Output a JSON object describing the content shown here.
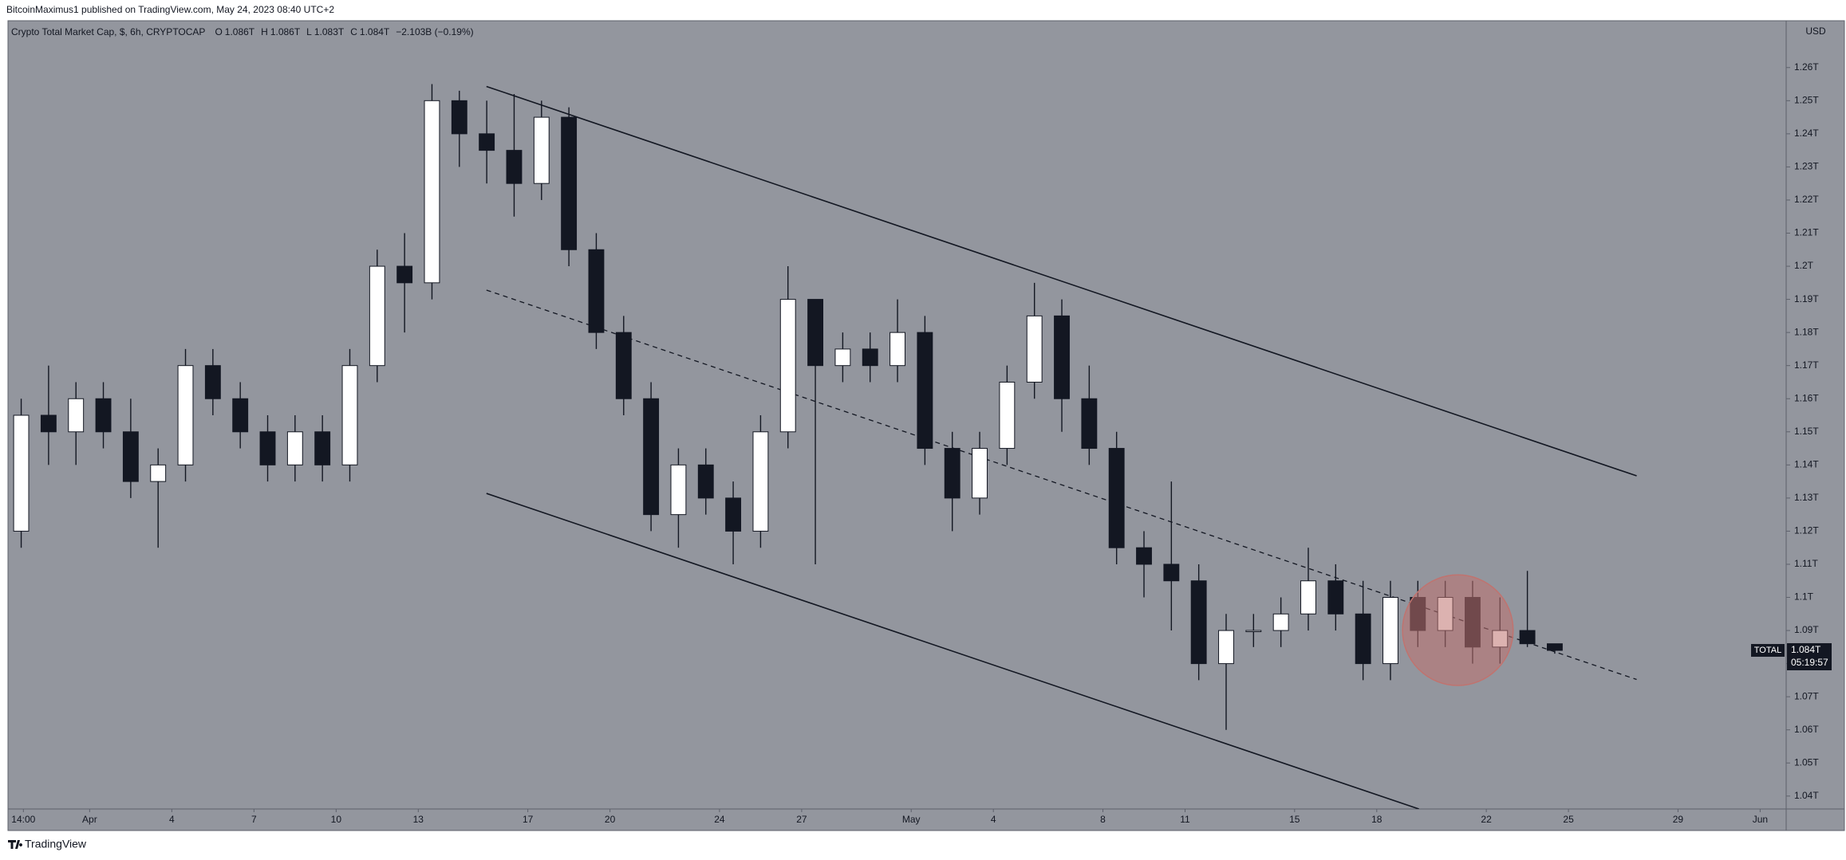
{
  "chart_data": {
    "type": "candlestick",
    "publisher": "BitcoinMaximus1 published on TradingView.com, May 24, 2023 08:40 UTC+2",
    "title": "Crypto Total Market Cap, $, 6h, CRYPTOCAP",
    "legend_values": [
      {
        "label": "O",
        "value": "1.086T"
      },
      {
        "label": "H",
        "value": "1.086T"
      },
      {
        "label": "L",
        "value": "1.083T"
      },
      {
        "label": "C",
        "value": "1.084T"
      }
    ],
    "change": "−2.103B (−0.19%)",
    "y_unit_label": "USD",
    "x": [
      -2.5,
      -1.5,
      -0.5,
      0.5,
      1.5,
      2.5,
      3.5,
      4.5,
      5.5,
      6.5,
      7.5,
      8.5,
      9.5,
      10.5,
      11.5,
      12.5,
      13.5,
      14.5,
      15.5,
      16.5,
      17.5,
      18.5,
      19.5,
      20.5,
      21.5,
      22.5,
      23.5,
      24.5,
      25.5,
      26.5,
      27.5,
      28.5,
      29.5,
      30.5,
      31.5,
      32.5,
      33.5,
      34.5,
      35.5,
      36.5,
      37.5,
      38.5,
      39.5,
      40.5,
      41.5,
      42.5,
      43.5,
      44.5,
      45.5,
      46.5,
      47.5,
      48.5,
      49.5,
      50.5,
      51.5,
      52.5,
      53.5
    ],
    "open": [
      1.12,
      1.155,
      1.15,
      1.16,
      1.15,
      1.135,
      1.14,
      1.17,
      1.16,
      1.15,
      1.14,
      1.15,
      1.14,
      1.17,
      1.2,
      1.195,
      1.25,
      1.24,
      1.235,
      1.225,
      1.245,
      1.205,
      1.18,
      1.16,
      1.125,
      1.14,
      1.13,
      1.12,
      1.15,
      1.19,
      1.17,
      1.175,
      1.17,
      1.18,
      1.145,
      1.13,
      1.145,
      1.165,
      1.185,
      1.16,
      1.145,
      1.115,
      1.11,
      1.105,
      1.08,
      1.09,
      1.09,
      1.095,
      1.105,
      1.095,
      1.08,
      1.1,
      1.09,
      1.1,
      1.085,
      1.09,
      1.086
    ],
    "high": [
      1.16,
      1.17,
      1.165,
      1.165,
      1.16,
      1.145,
      1.175,
      1.175,
      1.165,
      1.155,
      1.155,
      1.155,
      1.175,
      1.205,
      1.21,
      1.255,
      1.253,
      1.25,
      1.252,
      1.25,
      1.248,
      1.21,
      1.185,
      1.165,
      1.145,
      1.145,
      1.135,
      1.155,
      1.2,
      1.19,
      1.18,
      1.18,
      1.19,
      1.185,
      1.15,
      1.15,
      1.17,
      1.195,
      1.19,
      1.17,
      1.15,
      1.12,
      1.135,
      1.11,
      1.095,
      1.095,
      1.1,
      1.115,
      1.11,
      1.105,
      1.105,
      1.105,
      1.105,
      1.105,
      1.1,
      1.108,
      1.086
    ],
    "low": [
      1.115,
      1.14,
      1.14,
      1.145,
      1.13,
      1.115,
      1.135,
      1.155,
      1.145,
      1.135,
      1.135,
      1.135,
      1.135,
      1.165,
      1.18,
      1.19,
      1.23,
      1.225,
      1.215,
      1.22,
      1.2,
      1.175,
      1.155,
      1.12,
      1.115,
      1.125,
      1.11,
      1.115,
      1.145,
      1.11,
      1.165,
      1.165,
      1.165,
      1.14,
      1.12,
      1.125,
      1.14,
      1.16,
      1.15,
      1.14,
      1.11,
      1.1,
      1.09,
      1.075,
      1.06,
      1.085,
      1.085,
      1.09,
      1.09,
      1.075,
      1.075,
      1.085,
      1.085,
      1.08,
      1.08,
      1.085,
      1.083
    ],
    "close": [
      1.155,
      1.15,
      1.16,
      1.15,
      1.135,
      1.14,
      1.17,
      1.16,
      1.15,
      1.14,
      1.15,
      1.14,
      1.17,
      1.2,
      1.195,
      1.25,
      1.24,
      1.235,
      1.225,
      1.245,
      1.205,
      1.18,
      1.16,
      1.125,
      1.14,
      1.13,
      1.12,
      1.15,
      1.19,
      1.17,
      1.175,
      1.17,
      1.18,
      1.145,
      1.13,
      1.145,
      1.165,
      1.185,
      1.16,
      1.145,
      1.115,
      1.11,
      1.105,
      1.08,
      1.09,
      1.09,
      1.095,
      1.105,
      1.095,
      1.08,
      1.1,
      1.09,
      1.1,
      1.085,
      1.09,
      1.086,
      1.084
    ],
    "up_color": "#ffffff",
    "down_color": "#131722",
    "background": "#93969e",
    "xlim": [
      -2.93,
      61.95
    ],
    "ylim": [
      1.0361,
      1.274
    ],
    "xticks": [
      {
        "value": -2.42,
        "label": "14:00"
      },
      {
        "value": 0,
        "label": "Apr"
      },
      3,
      6,
      9,
      12,
      16,
      19,
      23,
      26,
      {
        "value": 30,
        "label": "May"
      },
      33,
      37,
      40,
      44,
      47,
      51,
      54,
      58,
      {
        "value": 61,
        "label": "Jun"
      }
    ],
    "xtick_day_labels": [
      "4",
      "7",
      "10",
      "13",
      "17",
      "20",
      "24",
      "27",
      "4",
      "8",
      "11",
      "15",
      "18",
      "22",
      "25",
      "29"
    ],
    "yticks": [
      {
        "value": 1.04,
        "label": "1.04T"
      },
      {
        "value": 1.05,
        "label": "1.05T"
      },
      {
        "value": 1.06,
        "label": "1.06T"
      },
      {
        "value": 1.07,
        "label": "1.07T"
      },
      {
        "value": 1.08,
        "label": "1.08T"
      },
      {
        "value": 1.09,
        "label": "1.09T"
      },
      {
        "value": 1.1,
        "label": "1.1T"
      },
      {
        "value": 1.11,
        "label": "1.11T"
      },
      {
        "value": 1.12,
        "label": "1.12T"
      },
      {
        "value": 1.13,
        "label": "1.13T"
      },
      {
        "value": 1.14,
        "label": "1.14T"
      },
      {
        "value": 1.15,
        "label": "1.15T"
      },
      {
        "value": 1.16,
        "label": "1.16T"
      },
      {
        "value": 1.17,
        "label": "1.17T"
      },
      {
        "value": 1.18,
        "label": "1.18T"
      },
      {
        "value": 1.19,
        "label": "1.19T"
      },
      {
        "value": 1.2,
        "label": "1.2T"
      },
      {
        "value": 1.21,
        "label": "1.21T"
      },
      {
        "value": 1.22,
        "label": "1.22T"
      },
      {
        "value": 1.23,
        "label": "1.23T"
      },
      {
        "value": 1.24,
        "label": "1.24T"
      },
      {
        "value": 1.25,
        "label": "1.25T"
      },
      {
        "value": 1.26,
        "label": "1.26T"
      }
    ],
    "last_price": {
      "symbol": "TOTAL",
      "label": "1.084T",
      "countdown": "05:19:57"
    },
    "trend_lines": [
      {
        "x": [
          14.49,
          56.49
        ],
        "y": [
          1.2543,
          1.1367
        ],
        "dashed": false
      },
      {
        "x": [
          14.49,
          56.49
        ],
        "y": [
          1.1928,
          1.0752
        ],
        "dashed": true
      },
      {
        "x": [
          14.49,
          48.54
        ],
        "y": [
          1.1314,
          1.0361
        ],
        "dashed": false
      }
    ],
    "highlight": {
      "x": 49.96,
      "y": 1.0901,
      "rx": 2.02,
      "ry": 0.0167,
      "color": "#c0736f"
    },
    "footer": "TradingView"
  }
}
